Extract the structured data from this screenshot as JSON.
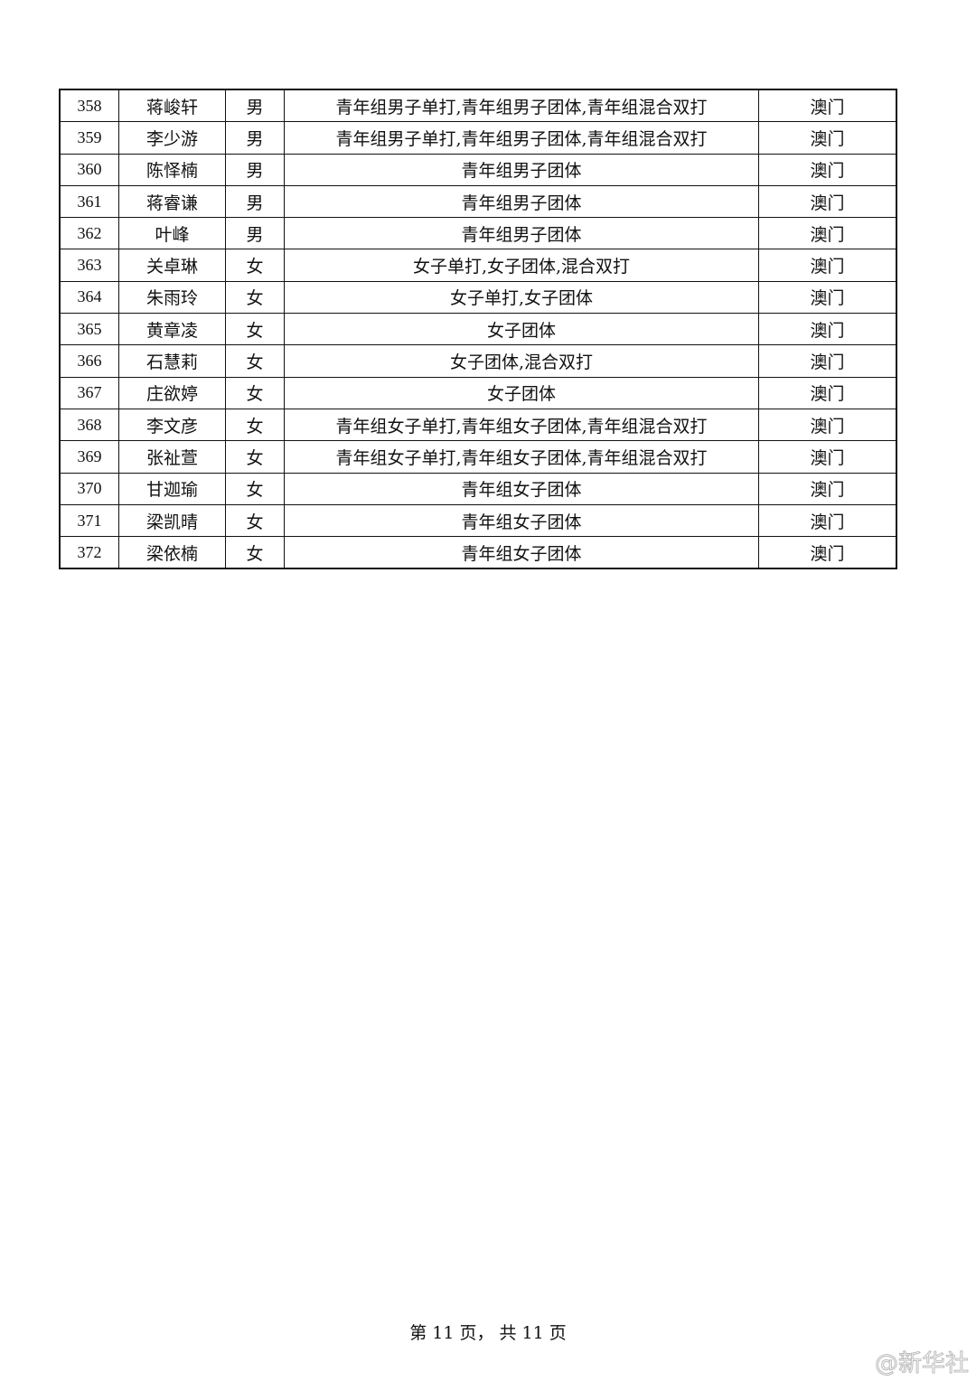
{
  "table": {
    "rows": [
      {
        "no": "358",
        "name": "蒋峻轩",
        "gender": "男",
        "events": "青年组男子单打,青年组男子团体,青年组混合双打",
        "region": "澳门"
      },
      {
        "no": "359",
        "name": "李少游",
        "gender": "男",
        "events": "青年组男子单打,青年组男子团体,青年组混合双打",
        "region": "澳门"
      },
      {
        "no": "360",
        "name": "陈怿楠",
        "gender": "男",
        "events": "青年组男子团体",
        "region": "澳门"
      },
      {
        "no": "361",
        "name": "蒋睿谦",
        "gender": "男",
        "events": "青年组男子团体",
        "region": "澳门"
      },
      {
        "no": "362",
        "name": "叶峰",
        "gender": "男",
        "events": "青年组男子团体",
        "region": "澳门"
      },
      {
        "no": "363",
        "name": "关卓琳",
        "gender": "女",
        "events": "女子单打,女子团体,混合双打",
        "region": "澳门"
      },
      {
        "no": "364",
        "name": "朱雨玲",
        "gender": "女",
        "events": "女子单打,女子团体",
        "region": "澳门"
      },
      {
        "no": "365",
        "name": "黄章凌",
        "gender": "女",
        "events": "女子团体",
        "region": "澳门"
      },
      {
        "no": "366",
        "name": "石慧莉",
        "gender": "女",
        "events": "女子团体,混合双打",
        "region": "澳门"
      },
      {
        "no": "367",
        "name": "庄欲婷",
        "gender": "女",
        "events": "女子团体",
        "region": "澳门"
      },
      {
        "no": "368",
        "name": "李文彦",
        "gender": "女",
        "events": "青年组女子单打,青年组女子团体,青年组混合双打",
        "region": "澳门"
      },
      {
        "no": "369",
        "name": "张祉萱",
        "gender": "女",
        "events": "青年组女子单打,青年组女子团体,青年组混合双打",
        "region": "澳门"
      },
      {
        "no": "370",
        "name": "甘迦瑜",
        "gender": "女",
        "events": "青年组女子团体",
        "region": "澳门"
      },
      {
        "no": "371",
        "name": "梁凯晴",
        "gender": "女",
        "events": "青年组女子团体",
        "region": "澳门"
      },
      {
        "no": "372",
        "name": "梁依楠",
        "gender": "女",
        "events": "青年组女子团体",
        "region": "澳门"
      }
    ]
  },
  "footer": {
    "page_label": "第 11 页， 共 11 页"
  },
  "watermark": {
    "text": "@新华社"
  }
}
